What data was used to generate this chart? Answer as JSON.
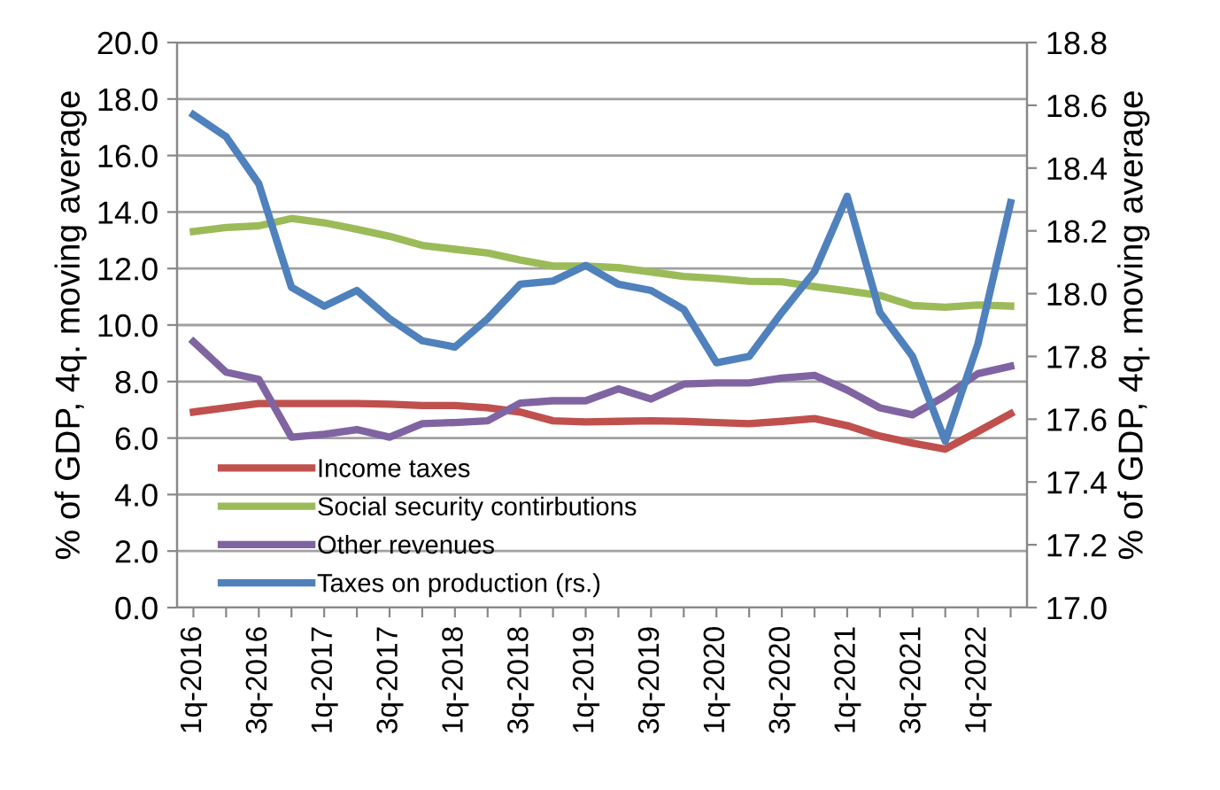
{
  "chart_data": {
    "type": "line",
    "ylabel": "% of GDP, 4q. moving average",
    "y2label": "% of GDP, 4q. moving average",
    "categories": [
      "1q-2016",
      null,
      "3q-2016",
      null,
      "1q-2017",
      null,
      "3q-2017",
      null,
      "1q-2018",
      null,
      "3q-2018",
      null,
      "1q-2019",
      null,
      "3q-2019",
      null,
      "1q-2020",
      null,
      "3q-2020",
      null,
      "1q-2021",
      null,
      "3q-2021",
      null,
      "1q-2022",
      null
    ],
    "series": [
      {
        "name": "Income taxes",
        "color": "#c0504d",
        "values": [
          6.92,
          7.07,
          7.22,
          7.22,
          7.22,
          7.22,
          7.2,
          7.15,
          7.15,
          7.07,
          6.92,
          6.61,
          6.57,
          6.59,
          6.61,
          6.59,
          6.55,
          6.51,
          6.59,
          6.69,
          6.44,
          6.07,
          5.82,
          5.61,
          6.23,
          6.86
        ]
      },
      {
        "name": "Social security contirbutions",
        "color": "#9bbb59",
        "values": [
          13.31,
          13.45,
          13.51,
          13.77,
          13.62,
          13.39,
          13.14,
          12.82,
          12.68,
          12.55,
          12.3,
          12.09,
          12.09,
          12.03,
          11.88,
          11.72,
          11.65,
          11.55,
          11.53,
          11.36,
          11.21,
          11.05,
          10.69,
          10.63,
          10.71,
          10.67
        ]
      },
      {
        "name": "Other revenues",
        "color": "#8064a2",
        "values": [
          9.41,
          8.33,
          8.08,
          6.03,
          6.13,
          6.3,
          6.03,
          6.51,
          6.55,
          6.61,
          7.24,
          7.32,
          7.32,
          7.74,
          7.38,
          7.91,
          7.95,
          7.95,
          8.12,
          8.22,
          7.7,
          7.07,
          6.82,
          7.49,
          8.28,
          8.54
        ]
      },
      {
        "name": "Taxes on production (rs.)",
        "color": "#4f81bd",
        "axis": "y2",
        "values": [
          18.57,
          18.5,
          18.35,
          18.02,
          17.96,
          18.01,
          17.92,
          17.85,
          17.83,
          17.92,
          18.03,
          18.04,
          18.09,
          18.03,
          18.01,
          17.95,
          17.78,
          17.8,
          17.94,
          18.07,
          18.31,
          17.94,
          17.8,
          17.53,
          17.84,
          18.29
        ]
      }
    ],
    "ylim": [
      0,
      20
    ],
    "yticks": [
      {
        "value": 0,
        "label": "0.0"
      },
      {
        "value": 2,
        "label": "2.0"
      },
      {
        "value": 4,
        "label": "4.0"
      },
      {
        "value": 6,
        "label": "6.0"
      },
      {
        "value": 8,
        "label": "8.0"
      },
      {
        "value": 10,
        "label": "10.0"
      },
      {
        "value": 12,
        "label": "12.0"
      },
      {
        "value": 14,
        "label": "14.0"
      },
      {
        "value": 16,
        "label": "16.0"
      },
      {
        "value": 18,
        "label": "18.0"
      },
      {
        "value": 20,
        "label": "20.0"
      }
    ],
    "y2lim": [
      17,
      18.8
    ],
    "y2ticks": [
      {
        "value": 17,
        "label": "17.0"
      },
      {
        "value": 17.2,
        "label": "17.2"
      },
      {
        "value": 17.4,
        "label": "17.4"
      },
      {
        "value": 17.6,
        "label": "17.6"
      },
      {
        "value": 17.8,
        "label": "17.8"
      },
      {
        "value": 18,
        "label": "18.0"
      },
      {
        "value": 18.2,
        "label": "18.2"
      },
      {
        "value": 18.4,
        "label": "18.4"
      },
      {
        "value": 18.6,
        "label": "18.6"
      },
      {
        "value": 18.8,
        "label": "18.8"
      }
    ],
    "grid": "y",
    "legend": "bottom left",
    "marker": "none",
    "line_style": "solid"
  }
}
